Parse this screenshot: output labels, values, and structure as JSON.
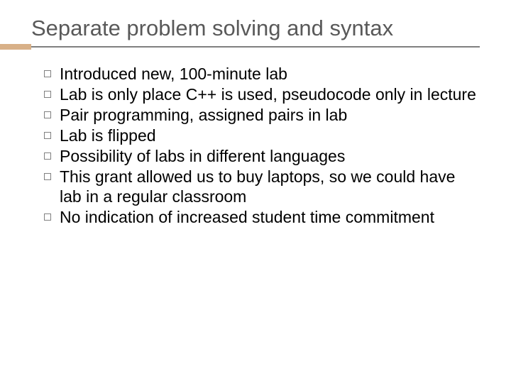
{
  "slide": {
    "title": "Separate problem solving and syntax",
    "title_color": "#595959",
    "title_fontsize": 31,
    "accent_color": "#d8b088",
    "underline_color": "#808080",
    "bullet_border_color": "#808080",
    "body_fontsize": 23,
    "bullets": [
      "Introduced new, 100-minute lab",
      "Lab is only place C++ is used, pseudocode only in lecture",
      "Pair programming, assigned pairs in lab",
      "Lab is flipped",
      "Possibility of labs in different languages",
      "This grant allowed us to buy laptops, so we could have lab in a regular classroom",
      "No indication of increased student time commitment"
    ]
  }
}
